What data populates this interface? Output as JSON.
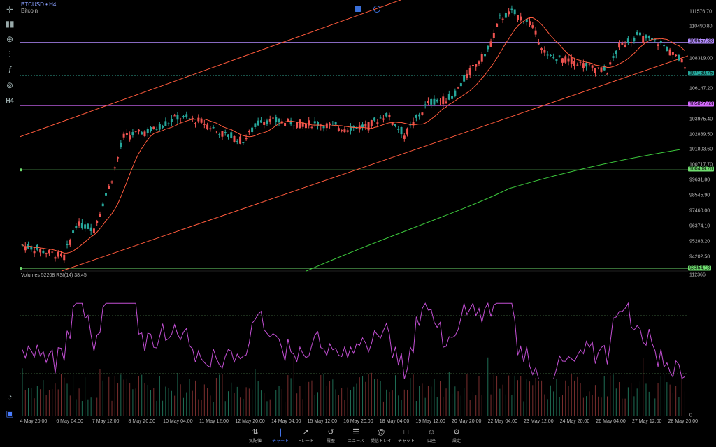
{
  "header": {
    "symbol": "BTCUSD • H4",
    "name": "Bitcoin",
    "indicator_label": "Volumes 52208  RSI(14) 38.45"
  },
  "colors": {
    "up": "#26a69a",
    "down": "#ef5350",
    "ma_fast": "#ff5a3c",
    "ma_slow": "#3cc83c",
    "rsi": "#c34fd4",
    "purple": "#b48cff",
    "green_line": "#6edc6e"
  },
  "price_axis": {
    "labels": [
      "111576.70",
      "110490.80",
      "108319.00",
      "107160.75",
      "106147.20",
      "103975.40",
      "102889.50",
      "101803.60",
      "100717.70",
      "99631.80",
      "98545.90",
      "97460.00",
      "96374.10",
      "95288.20",
      "94202.50",
      "93354.18"
    ],
    "tags": [
      {
        "value": "109557.33",
        "color": "#b48cff"
      },
      {
        "value": "107160.75",
        "color": "#26a69a"
      },
      {
        "value": "105027.63",
        "color": "#d66bff"
      },
      {
        "value": "100409.78",
        "color": "#6edc6e"
      },
      {
        "value": "93354.18",
        "color": "#6edc6e"
      }
    ],
    "volume_max": "112366",
    "volume_min": "0"
  },
  "time_axis": [
    "4 May 20:00",
    "6 May 04:00",
    "7 May 12:00",
    "8 May 20:00",
    "10 May 04:00",
    "11 May 12:00",
    "12 May 20:00",
    "14 May 04:00",
    "15 May 12:00",
    "16 May 20:00",
    "18 May 04:00",
    "19 May 12:00",
    "20 May 20:00",
    "22 May 04:00",
    "23 May 12:00",
    "24 May 20:00",
    "26 May 04:00",
    "27 May 12:00",
    "28 May 20:00"
  ],
  "chart_data": {
    "type": "candlestick",
    "price_range": [
      93354.18,
      112200
    ],
    "horizontal_levels": [
      109557.33,
      107160.75,
      105027.63,
      100409.78,
      93354.18
    ],
    "series": [
      {
        "name": "Volumes",
        "type": "bar"
      },
      {
        "name": "RSI(14)",
        "type": "line",
        "last": 38.45
      }
    ]
  },
  "toolbar": {
    "icons": [
      "crosshair-icon",
      "candles-icon",
      "indicators-icon",
      "function-icon",
      "objects-icon",
      "timeframe-icon"
    ],
    "timeframe": "H4"
  },
  "bottom_nav": [
    {
      "label": "気配値",
      "icon": "⇅"
    },
    {
      "label": "チャート",
      "icon": "❙"
    },
    {
      "label": "トレード",
      "icon": "↗"
    },
    {
      "label": "履歴",
      "icon": "↺"
    },
    {
      "label": "ニュース",
      "icon": "☰"
    },
    {
      "label": "受信トレイ",
      "icon": "@"
    },
    {
      "label": "チャット",
      "icon": "□"
    },
    {
      "label": "口座",
      "icon": "☺"
    },
    {
      "label": "設定",
      "icon": "⚙"
    }
  ]
}
